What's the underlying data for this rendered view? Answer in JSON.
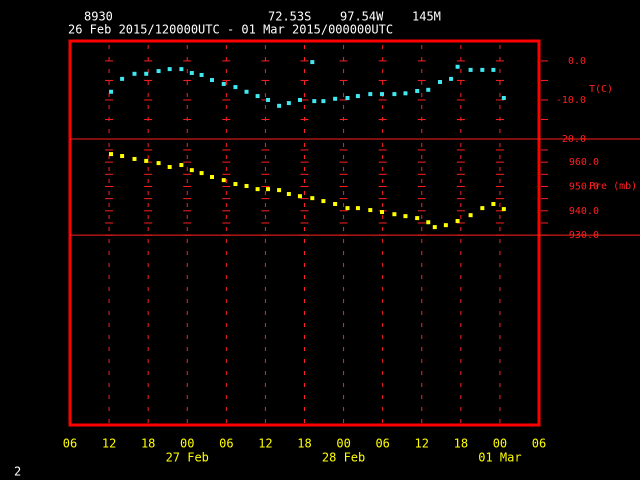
{
  "header": {
    "station": "8930",
    "lat": "72.53S",
    "lon": "97.54W",
    "elev": "145M",
    "period": "26 Feb 2015/120000UTC - 01 Mar 2015/000000UTC"
  },
  "page_number": "2",
  "chart_data": [
    {
      "type": "scatter",
      "y_label": "T(C)",
      "color": "#40e8f0",
      "xlim": [
        0,
        72
      ],
      "xticks": [
        6,
        12,
        18,
        24,
        30,
        36,
        42,
        48,
        54,
        60,
        66
      ],
      "ylim": [
        -20,
        5.1
      ],
      "yticks": [
        {
          "value": 0,
          "label": "0.0"
        },
        {
          "value": -10,
          "label": "-10.0"
        },
        {
          "value": -20,
          "label": "-20.0"
        }
      ],
      "yminor": [
        -5,
        -15
      ],
      "x": [
        6.3,
        8.0,
        9.9,
        11.7,
        13.6,
        15.3,
        17.1,
        18.7,
        20.2,
        21.8,
        23.6,
        25.4,
        27.1,
        28.8,
        30.4,
        32.1,
        33.6,
        35.3,
        37.2,
        37.5,
        38.9,
        40.7,
        42.6,
        44.2,
        46.1,
        47.9,
        49.8,
        51.5,
        53.3,
        55.0,
        56.8,
        58.5,
        59.5,
        61.5,
        63.3,
        65.0,
        66.6
      ],
      "values": [
        -7.9,
        -4.6,
        -3.3,
        -3.3,
        -2.6,
        -2.1,
        -2.1,
        -3.1,
        -3.6,
        -4.9,
        -5.9,
        -6.7,
        -7.9,
        -9.0,
        -10.0,
        -11.5,
        -10.8,
        -10.0,
        -0.3,
        -10.3,
        -10.3,
        -9.7,
        -9.5,
        -9.0,
        -8.5,
        -8.5,
        -8.5,
        -8.3,
        -7.7,
        -7.4,
        -5.4,
        -4.6,
        -1.5,
        -2.3,
        -2.3,
        -2.3,
        -9.5
      ]
    },
    {
      "type": "scatter",
      "y_label": "Pre (mb)",
      "color": "#ffff00",
      "xlim": [
        0,
        72
      ],
      "xticks": [
        {
          "value": 0,
          "label": "06"
        },
        {
          "value": 6,
          "label": "12"
        },
        {
          "value": 12,
          "label": "18"
        },
        {
          "value": 18,
          "label": "00"
        },
        {
          "value": 24,
          "label": "06"
        },
        {
          "value": 30,
          "label": "12"
        },
        {
          "value": 36,
          "label": "18"
        },
        {
          "value": 42,
          "label": "00"
        },
        {
          "value": 48,
          "label": "06"
        },
        {
          "value": 54,
          "label": "12"
        },
        {
          "value": 60,
          "label": "18"
        },
        {
          "value": 66,
          "label": "00"
        },
        {
          "value": 72,
          "label": "06"
        }
      ],
      "date_labels": [
        {
          "value": 18,
          "label": "27 Feb"
        },
        {
          "value": 42,
          "label": "28 Feb"
        },
        {
          "value": 66,
          "label": "01 Mar"
        }
      ],
      "ylim": [
        852,
        969.5
      ],
      "yticks": [
        {
          "value": 930,
          "label": "930.0"
        },
        {
          "value": 940,
          "label": "940.0"
        },
        {
          "value": 950,
          "label": "950.0"
        },
        {
          "value": 960,
          "label": "960.0"
        }
      ],
      "yminor": [
        935,
        945,
        955,
        965
      ],
      "x": [
        6.3,
        8.0,
        9.9,
        11.7,
        13.6,
        15.3,
        17.1,
        18.7,
        20.2,
        21.8,
        23.6,
        25.4,
        27.1,
        28.8,
        30.4,
        32.1,
        33.6,
        35.3,
        37.2,
        38.9,
        40.7,
        42.6,
        44.2,
        46.1,
        47.9,
        49.8,
        51.5,
        53.3,
        55.0,
        56.0,
        57.7,
        59.5,
        61.5,
        63.3,
        65.0,
        66.6
      ],
      "values": [
        963.3,
        962.5,
        961.3,
        960.5,
        959.6,
        958.0,
        958.8,
        956.7,
        955.5,
        953.9,
        952.6,
        951.0,
        950.2,
        948.9,
        948.9,
        948.5,
        946.9,
        946.0,
        945.2,
        944.0,
        942.8,
        941.1,
        941.1,
        940.3,
        939.5,
        938.6,
        937.8,
        937.0,
        935.3,
        933.3,
        934.1,
        935.8,
        938.2,
        941.1,
        942.8,
        940.7
      ]
    }
  ]
}
